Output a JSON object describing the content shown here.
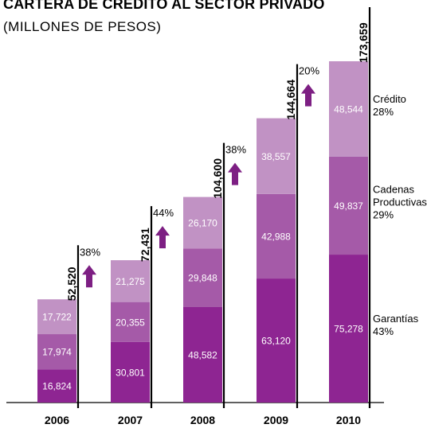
{
  "chart_data": {
    "type": "bar",
    "stacked": true,
    "title": "CARTERA DE CRÉDITO AL SECTOR PRIVADO",
    "subtitle": "(MILLONES DE PESOS)",
    "categories": [
      "2006",
      "2007",
      "2008",
      "2009",
      "2010"
    ],
    "series": [
      {
        "name": "Garantías",
        "share": "43%",
        "color": "#8e2592",
        "values": [
          16824,
          30801,
          48582,
          63120,
          75278
        ]
      },
      {
        "name": "Cadenas Productivas",
        "share": "29%",
        "color": "#a55aa8",
        "values": [
          17974,
          20355,
          29848,
          42988,
          49837
        ]
      },
      {
        "name": "Crédito",
        "share": "28%",
        "color": "#c192c4",
        "values": [
          17722,
          21275,
          26170,
          38557,
          48544
        ]
      }
    ],
    "segment_labels": [
      [
        "16,824",
        "17,974",
        "17,722"
      ],
      [
        "30,801",
        "20,355",
        "21,275"
      ],
      [
        "48,582",
        "29,848",
        "26,170"
      ],
      [
        "63,120",
        "42,988",
        "38,557"
      ],
      [
        "75,278",
        "49,837",
        "48,544"
      ]
    ],
    "totals": [
      "52,520",
      "72,431",
      "104,600",
      "144,664",
      "173,659"
    ],
    "total_values": [
      52520,
      72431,
      104600,
      144664,
      173659
    ],
    "growth": [
      "38%",
      "44%",
      "38%",
      "20%"
    ],
    "arrow_color": "#7d1f83",
    "legend_placement": "right",
    "ylim": [
      0,
      173659
    ]
  }
}
